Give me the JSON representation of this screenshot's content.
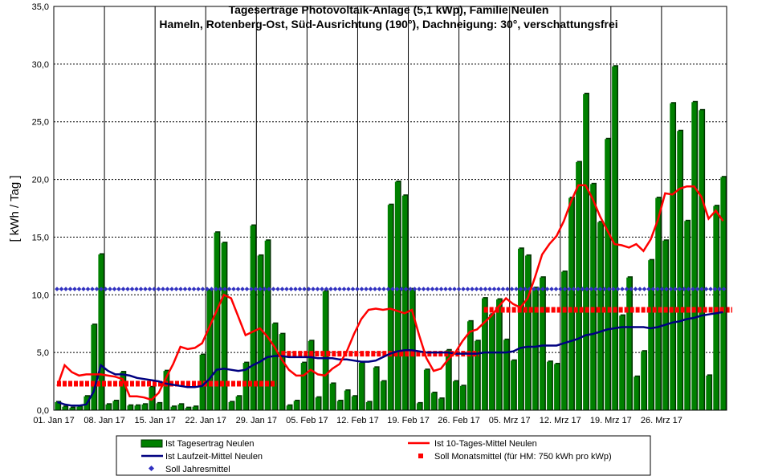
{
  "chart_data": {
    "type": "bar",
    "title": "Tageserträge Photovoltaik-Anlage (5,1 kWp),  Familie Neulen",
    "subtitle": "Hameln, Rotenberg-Ost, Süd-Ausrichtung (190°), Dachneigung: 30°, verschattungsfrei",
    "ylabel": "[ kWh / Tag ]",
    "ylim": [
      0,
      35
    ],
    "yticks": [
      "0,0",
      "5,0",
      "10,0",
      "15,0",
      "20,0",
      "25,0",
      "30,0",
      "35,0"
    ],
    "xticks": [
      {
        "day": 1,
        "label": "01. Jan 17"
      },
      {
        "day": 8,
        "label": "08. Jan 17"
      },
      {
        "day": 15,
        "label": "15. Jan 17"
      },
      {
        "day": 22,
        "label": "22. Jan 17"
      },
      {
        "day": 29,
        "label": "29. Jan 17"
      },
      {
        "day": 36,
        "label": "05. Feb 17"
      },
      {
        "day": 43,
        "label": "12. Feb 17"
      },
      {
        "day": 50,
        "label": "19. Feb 17"
      },
      {
        "day": 57,
        "label": "26. Feb 17"
      },
      {
        "day": 64,
        "label": "05. Mrz 17"
      },
      {
        "day": 71,
        "label": "12. Mrz 17"
      },
      {
        "day": 78,
        "label": "19. Mrz 17"
      },
      {
        "day": 85,
        "label": "26. Mrz 17"
      }
    ],
    "grid": true,
    "legend_position": "bottom",
    "series": [
      {
        "name": "Ist Tagesertrag Neulen",
        "type": "bar",
        "color": "#008000",
        "values": [
          0.7,
          0.3,
          0.2,
          0.3,
          1.2,
          7.4,
          13.5,
          0.5,
          0.8,
          3.3,
          0.4,
          0.4,
          0.5,
          2.0,
          0.6,
          3.4,
          0.3,
          0.5,
          0.2,
          0.3,
          4.8,
          10.4,
          15.4,
          14.5,
          0.7,
          1.2,
          4.1,
          16.0,
          13.4,
          14.7,
          7.5,
          6.6,
          0.4,
          0.8,
          4.1,
          6.0,
          1.1,
          10.3,
          2.3,
          0.8,
          1.7,
          1.2,
          4.1,
          0.7,
          3.7,
          2.5,
          17.8,
          19.8,
          18.6,
          10.5,
          0.6,
          3.5,
          1.5,
          1.0,
          5.2,
          2.5,
          2.1,
          7.7,
          6.0,
          9.7,
          8.3,
          9.6,
          6.1,
          4.3,
          14.0,
          13.4,
          10.6,
          11.5,
          4.2,
          4.0,
          12.0,
          18.4,
          21.5,
          27.4,
          19.6,
          16.3,
          23.5,
          29.8,
          8.2,
          11.5,
          2.9,
          5.1,
          13.0,
          18.4,
          14.7,
          26.6,
          24.2,
          16.4,
          26.7,
          26.0,
          3.0,
          17.7,
          20.2
        ]
      },
      {
        "name": "Ist 10-Tages-Mittel Neulen",
        "type": "line",
        "color": "#ff0000",
        "values": [
          2.1,
          3.9,
          3.3,
          3.0,
          3.1,
          3.1,
          3.1,
          3.0,
          2.9,
          2.7,
          1.2,
          1.2,
          1.1,
          0.9,
          1.5,
          2.8,
          4.0,
          5.5,
          5.3,
          5.4,
          5.8,
          7.2,
          8.6,
          10.0,
          9.7,
          8.1,
          6.5,
          6.8,
          7.1,
          6.4,
          5.5,
          4.4,
          3.5,
          3.0,
          3.0,
          3.5,
          3.1,
          3.0,
          3.6,
          4.0,
          5.1,
          6.6,
          7.9,
          8.7,
          8.8,
          8.7,
          8.8,
          8.6,
          8.4,
          8.7,
          6.5,
          4.5,
          3.4,
          3.6,
          4.4,
          5.0,
          6.0,
          6.8,
          7.0,
          7.6,
          8.2,
          9.0,
          9.7,
          9.2,
          8.9,
          9.7,
          11.5,
          13.5,
          14.4,
          15.1,
          16.4,
          18.1,
          19.5,
          19.5,
          18.3,
          16.8,
          15.6,
          14.4,
          14.3,
          14.1,
          14.4,
          13.8,
          14.8,
          16.5,
          18.8,
          18.7,
          19.2,
          19.4,
          19.4,
          18.5,
          16.6,
          17.3,
          16.4
        ]
      },
      {
        "name": "Ist Laufzeit-Mittel Neulen",
        "type": "line",
        "color": "#000080",
        "values": [
          0.7,
          0.5,
          0.4,
          0.4,
          0.5,
          1.6,
          3.9,
          3.4,
          3.1,
          3.1,
          3.0,
          2.8,
          2.7,
          2.6,
          2.5,
          2.3,
          2.2,
          2.1,
          2.0,
          2.0,
          2.1,
          2.7,
          3.5,
          3.6,
          3.5,
          3.4,
          3.5,
          3.9,
          4.2,
          4.6,
          4.7,
          4.7,
          4.6,
          4.6,
          4.6,
          4.6,
          4.5,
          4.5,
          4.5,
          4.4,
          4.4,
          4.3,
          4.2,
          4.2,
          4.3,
          4.6,
          4.9,
          5.1,
          5.2,
          5.2,
          5.1,
          5.0,
          5.0,
          5.0,
          5.0,
          4.9,
          4.9,
          4.9,
          4.9,
          5.0,
          5.0,
          5.0,
          5.0,
          5.1,
          5.4,
          5.5,
          5.5,
          5.6,
          5.6,
          5.6,
          5.8,
          6.0,
          6.2,
          6.5,
          6.6,
          6.8,
          7.0,
          7.1,
          7.2,
          7.2,
          7.2,
          7.2,
          7.1,
          7.2,
          7.4,
          7.6,
          7.7,
          7.9,
          8.0,
          8.2,
          8.3,
          8.4,
          8.5
        ]
      },
      {
        "name": "Soll Monatsmittel (für HM: 750 kWh pro kWp)",
        "type": "step",
        "color": "#ff0000",
        "segments": [
          {
            "from_day": 1,
            "to_day": 31,
            "value": 2.3
          },
          {
            "from_day": 32,
            "to_day": 59,
            "value": 4.9
          },
          {
            "from_day": 60,
            "to_day": 94,
            "value": 8.7
          }
        ]
      },
      {
        "name": "Soll Jahresmittel",
        "type": "dotted",
        "color": "#3030c0",
        "value": 10.5
      }
    ]
  }
}
